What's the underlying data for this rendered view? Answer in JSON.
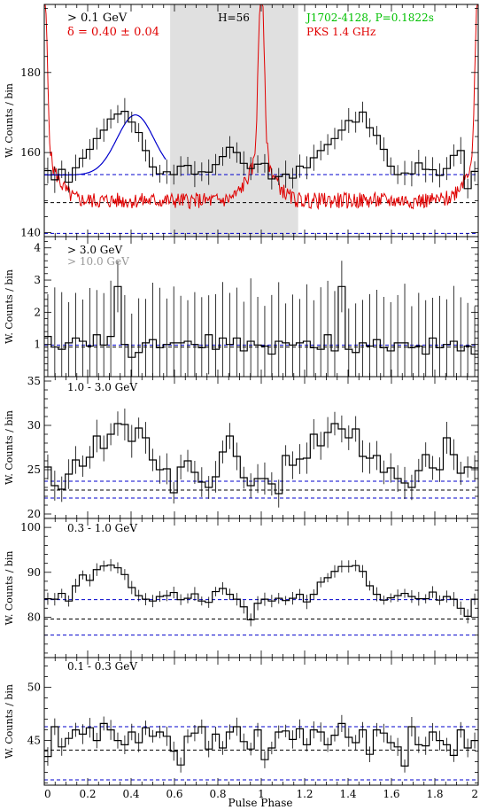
{
  "colors": {
    "histogram": "#000000",
    "radio": "#e00000",
    "fit": "#0000cc",
    "baseline_black": "#000000",
    "baseline_blue": "#0000cc",
    "label_green": "#00c000",
    "label_gray": "#999999",
    "shade": "#e0e0e0"
  },
  "common": {
    "xlabel": "Pulse Phase",
    "ylabel": "W. Counts / bin",
    "x_ticklabels": [
      {
        "v": 0,
        "t": "0"
      },
      {
        "v": 0.2,
        "t": "0.2"
      },
      {
        "v": 0.4,
        "t": "0.4"
      },
      {
        "v": 0.6,
        "t": "0.6"
      },
      {
        "v": 0.8,
        "t": "0.8"
      },
      {
        "v": 1,
        "t": "1"
      },
      {
        "v": 1.2,
        "t": "1.2"
      },
      {
        "v": 1.4,
        "t": "1.4"
      },
      {
        "v": 1.6,
        "t": "1.6"
      },
      {
        "v": 1.8,
        "t": "1.8"
      },
      {
        "v": 2,
        "t": "2"
      }
    ]
  },
  "annotations": {
    "energy_top": "> 0.1 GeV",
    "delta": "δ = 0.40 ± 0.04",
    "htest": "H=56",
    "pulsar": "J1702-4128, P=0.1822s",
    "radio": "PKS 1.4 GHz",
    "energy_p2a": "> 3.0 GeV",
    "energy_p2b": "> 10.0 GeV",
    "energy_p3": "1.0 - 3.0 GeV",
    "energy_p4": "0.3 - 1.0 GeV",
    "energy_p5": "0.1 - 0.3 GeV"
  },
  "chart_data": [
    {
      "type": "line",
      "panel": "> 0.1 GeV",
      "xlim": [
        0,
        2
      ],
      "ylim": [
        139,
        197
      ],
      "yticks": [
        140,
        160,
        180
      ],
      "shaded_x": [
        0.58,
        1.17
      ],
      "baselines": [
        {
          "y": 147.5,
          "color": "black"
        },
        {
          "y": 154.5,
          "color": "blue"
        },
        {
          "y": 139.8,
          "color": "blue"
        }
      ],
      "series": [
        {
          "kind": "histogram",
          "values": [
            155.5,
            153.2,
            155.8,
            152.6,
            156.2,
            158.6,
            160.8,
            163.5,
            165.6,
            168.4,
            169.6,
            170.3,
            167.6,
            165.0,
            160.5,
            156.4,
            154.7,
            155.2,
            154.5,
            156.6,
            156.8,
            154.6,
            155.2,
            155.1,
            157.0,
            159.0,
            161.3,
            160.0,
            157.3,
            156.0,
            157.1,
            157.3,
            153.4,
            154.0,
            154.6,
            153.6,
            156.6,
            156.2,
            158.7,
            160.5,
            162.0,
            163.5,
            165.6,
            168.0,
            167.6,
            170.1,
            166.2,
            164.3,
            160.8,
            156.6,
            154.5,
            154.9,
            154.7,
            157.4,
            155.8,
            155.7,
            154.3,
            156.0,
            159.3,
            160.5,
            151.0,
            155.3
          ]
        },
        {
          "kind": "radio",
          "peak_x": 1.0,
          "peak_y": 193,
          "floor": 148
        }
      ]
    },
    {
      "type": "line",
      "panel": "> 3.0 GeV",
      "xlim": [
        0,
        2
      ],
      "ylim": [
        0,
        4.35
      ],
      "yticks": [
        1,
        2,
        3,
        4
      ],
      "baselines": [
        {
          "y": 0.98,
          "color": "blue"
        },
        {
          "y": 0.92,
          "color": "black"
        }
      ],
      "series": [
        {
          "kind": "histogram",
          "values": [
            1.25,
            0.92,
            0.85,
            1.05,
            1.2,
            1.1,
            0.95,
            1.3,
            0.98,
            1.25,
            2.8,
            1.0,
            0.6,
            0.75,
            1.05,
            1.15,
            0.9,
            1.0,
            1.05,
            1.05,
            1.1,
            1.0,
            0.9,
            1.3,
            0.85,
            1.2,
            1.0,
            1.2,
            0.8,
            1.1,
            0.98,
            0.95,
            0.7,
            1.1,
            1.05,
            0.98,
            1.05,
            1.1,
            0.9,
            0.85,
            1.3,
            0.8,
            2.8,
            0.85,
            0.75,
            1.05,
            0.95,
            1.15,
            0.9,
            0.8,
            1.05,
            1.05,
            0.9,
            0.95,
            0.7,
            1.2,
            0.9,
            1.0,
            1.1,
            0.8,
            0.95,
            0.7
          ]
        }
      ]
    },
    {
      "type": "line",
      "panel": "1.0 - 3.0 GeV",
      "xlim": [
        0,
        2
      ],
      "ylim": [
        19.5,
        35.5
      ],
      "yticks": [
        20,
        25,
        30,
        35
      ],
      "baselines": [
        {
          "y": 23.7,
          "color": "blue"
        },
        {
          "y": 22.7,
          "color": "black"
        },
        {
          "y": 21.8,
          "color": "blue"
        }
      ],
      "series": [
        {
          "kind": "histogram",
          "values": [
            25.3,
            23.2,
            22.8,
            24.5,
            26.1,
            25.4,
            26.4,
            28.8,
            27.4,
            29.0,
            30.2,
            30.1,
            28.2,
            29.7,
            28.6,
            26.1,
            25.0,
            25.1,
            22.4,
            25.3,
            26.0,
            24.7,
            23.6,
            23.0,
            24.2,
            27.0,
            28.8,
            26.5,
            24.1,
            23.2,
            24.0,
            24.0,
            23.4,
            22.3,
            26.6,
            25.5,
            26.2,
            26.3,
            29.0,
            27.7,
            29.2,
            30.2,
            29.6,
            28.6,
            29.6,
            26.5,
            26.3,
            26.6,
            24.7,
            25.2,
            24.0,
            23.5,
            23.0,
            24.9,
            26.7,
            25.2,
            25.0,
            28.6,
            26.7,
            24.6,
            25.3,
            25.2
          ]
        }
      ]
    },
    {
      "type": "line",
      "panel": "0.3 - 1.0 GeV",
      "xlim": [
        0,
        2
      ],
      "ylim": [
        71,
        102
      ],
      "yticks": [
        80,
        90,
        100
      ],
      "baselines": [
        {
          "y": 83.9,
          "color": "blue"
        },
        {
          "y": 79.6,
          "color": "black"
        },
        {
          "y": 76.0,
          "color": "blue"
        }
      ],
      "series": [
        {
          "kind": "histogram",
          "values": [
            84.1,
            84.0,
            85.3,
            83.6,
            87.0,
            89.4,
            88.2,
            90.6,
            91.4,
            91.6,
            91.0,
            89.5,
            86.6,
            84.8,
            84.0,
            83.6,
            84.6,
            84.8,
            85.5,
            83.9,
            84.2,
            85.2,
            83.6,
            83.3,
            85.7,
            86.4,
            85.1,
            84.0,
            82.3,
            79.4,
            83.1,
            84.0,
            83.6,
            84.2,
            83.7,
            84.2,
            85.1,
            83.4,
            85.1,
            87.8,
            88.8,
            90.2,
            91.3,
            91.3,
            91.5,
            90.2,
            87.0,
            85.1,
            83.8,
            84.3,
            84.8,
            85.3,
            84.6,
            84.1,
            84.1,
            85.6,
            83.8,
            84.6,
            84.0,
            82.0,
            80.2,
            84.0
          ]
        }
      ]
    },
    {
      "type": "line",
      "panel": "0.1 - 0.3 GeV",
      "xlim": [
        0,
        2
      ],
      "ylim": [
        40.8,
        52.8
      ],
      "yticks": [
        45,
        50
      ],
      "baselines": [
        {
          "y": 46.3,
          "color": "blue"
        },
        {
          "y": 44.1,
          "color": "black"
        },
        {
          "y": 41.3,
          "color": "blue"
        }
      ],
      "series": [
        {
          "kind": "histogram",
          "values": [
            43.5,
            46.3,
            44.4,
            45.2,
            46.0,
            45.6,
            46.2,
            45.0,
            46.6,
            46.0,
            45.0,
            44.6,
            45.8,
            44.8,
            46.2,
            45.4,
            45.8,
            45.4,
            44.0,
            42.7,
            45.4,
            45.7,
            46.3,
            44.2,
            45.6,
            44.3,
            45.8,
            46.3,
            44.9,
            44.2,
            46.0,
            43.2,
            44.3,
            45.8,
            45.9,
            45.1,
            46.1,
            44.6,
            46.0,
            45.8,
            44.6,
            45.5,
            46.6,
            45.3,
            44.8,
            46.0,
            43.7,
            46.0,
            45.7,
            44.8,
            44.4,
            42.6,
            46.3,
            44.6,
            44.5,
            45.8,
            45.0,
            44.6,
            43.6,
            46.0,
            44.3,
            45.0
          ]
        }
      ]
    }
  ]
}
